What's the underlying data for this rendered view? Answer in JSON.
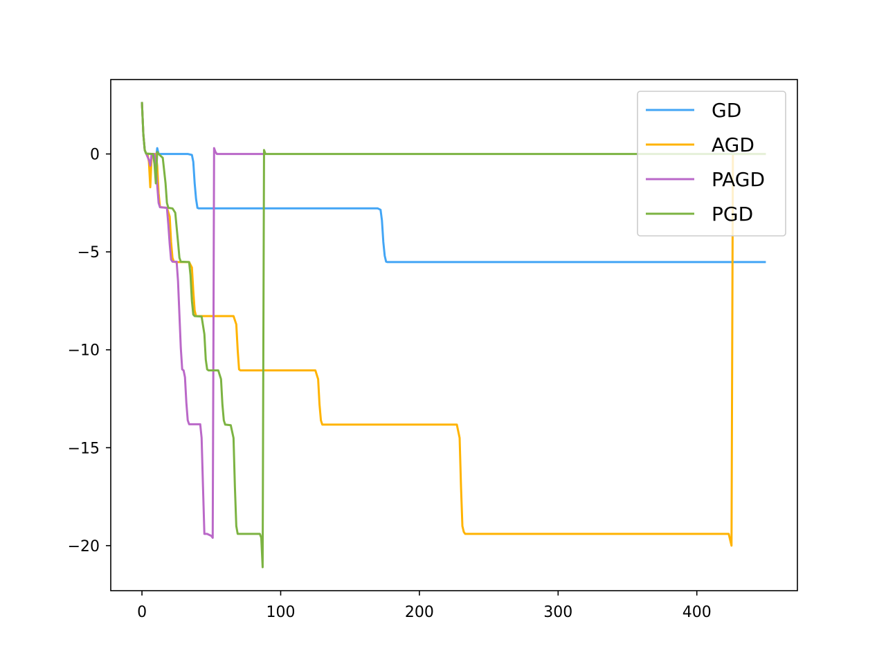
{
  "chart_data": {
    "type": "line",
    "title": "",
    "xlabel": "",
    "ylabel": "",
    "xlim": [
      -22.5,
      472.5
    ],
    "ylim": [
      -22.3,
      3.8
    ],
    "x_ticks": [
      0,
      100,
      200,
      300,
      400
    ],
    "y_ticks": [
      0,
      -5,
      -10,
      -15,
      -20
    ],
    "x_tick_labels": [
      "0",
      "100",
      "200",
      "300",
      "400"
    ],
    "y_tick_labels": [
      "0",
      "−5",
      "−10",
      "−15",
      "−20"
    ],
    "grid": false,
    "legend_placement": "top-right",
    "series": [
      {
        "name": "GD",
        "color": "#42a5f5",
        "points": [
          [
            0,
            2.6
          ],
          [
            1,
            1.0
          ],
          [
            2,
            0.2
          ],
          [
            3,
            0.02
          ],
          [
            5,
            0.0
          ],
          [
            8,
            0.0
          ],
          [
            10,
            -0.3
          ],
          [
            11,
            0.3
          ],
          [
            12,
            0.0
          ],
          [
            33,
            0.0
          ],
          [
            36,
            -0.05
          ],
          [
            37,
            -0.4
          ],
          [
            38,
            -1.5
          ],
          [
            39,
            -2.3
          ],
          [
            40,
            -2.75
          ],
          [
            41,
            -2.78
          ],
          [
            170,
            -2.78
          ],
          [
            172,
            -2.85
          ],
          [
            173,
            -3.4
          ],
          [
            174,
            -4.5
          ],
          [
            175,
            -5.2
          ],
          [
            176,
            -5.5
          ],
          [
            177,
            -5.52
          ],
          [
            449,
            -5.52
          ]
        ]
      },
      {
        "name": "AGD",
        "color": "#ffb300",
        "points": [
          [
            0,
            2.6
          ],
          [
            1,
            1.0
          ],
          [
            2,
            0.2
          ],
          [
            3,
            0.02
          ],
          [
            4,
            0.0
          ],
          [
            5,
            -0.4
          ],
          [
            6,
            -1.7
          ],
          [
            7,
            0.0
          ],
          [
            10,
            0.0
          ],
          [
            11,
            -0.6
          ],
          [
            12,
            -2.0
          ],
          [
            13,
            -2.7
          ],
          [
            14,
            -2.72
          ],
          [
            18,
            -2.75
          ],
          [
            20,
            -3.2
          ],
          [
            21,
            -4.5
          ],
          [
            22,
            -5.3
          ],
          [
            23,
            -5.5
          ],
          [
            24,
            -5.52
          ],
          [
            34,
            -5.52
          ],
          [
            36,
            -5.8
          ],
          [
            37,
            -7.0
          ],
          [
            38,
            -8.0
          ],
          [
            39,
            -8.28
          ],
          [
            66,
            -8.28
          ],
          [
            68,
            -8.7
          ],
          [
            69,
            -10.0
          ],
          [
            70,
            -11.0
          ],
          [
            71,
            -11.05
          ],
          [
            125,
            -11.05
          ],
          [
            127,
            -11.5
          ],
          [
            128,
            -12.8
          ],
          [
            129,
            -13.6
          ],
          [
            130,
            -13.82
          ],
          [
            227,
            -13.82
          ],
          [
            229,
            -14.5
          ],
          [
            230,
            -17.0
          ],
          [
            231,
            -19.0
          ],
          [
            232,
            -19.3
          ],
          [
            233,
            -19.4
          ],
          [
            423,
            -19.4
          ],
          [
            424,
            -19.7
          ],
          [
            425,
            -20.0
          ],
          [
            425.5,
            -10.0
          ],
          [
            426,
            0.0
          ],
          [
            449,
            0.0
          ]
        ]
      },
      {
        "name": "PAGD",
        "color": "#ba68c8",
        "points": [
          [
            0,
            2.6
          ],
          [
            1,
            1.0
          ],
          [
            2,
            0.2
          ],
          [
            3,
            0.02
          ],
          [
            5,
            -0.3
          ],
          [
            6,
            -0.6
          ],
          [
            7,
            0.0
          ],
          [
            9,
            0.0
          ],
          [
            10,
            -0.6
          ],
          [
            11,
            -1.6
          ],
          [
            12,
            -2.5
          ],
          [
            13,
            -2.72
          ],
          [
            18,
            -2.75
          ],
          [
            19,
            -3.6
          ],
          [
            20,
            -4.6
          ],
          [
            21,
            -5.4
          ],
          [
            22,
            -5.5
          ],
          [
            25,
            -5.5
          ],
          [
            26,
            -6.5
          ],
          [
            27,
            -8.2
          ],
          [
            28,
            -9.9
          ],
          [
            29,
            -11.0
          ],
          [
            30,
            -11.05
          ],
          [
            31,
            -11.4
          ],
          [
            32,
            -12.7
          ],
          [
            33,
            -13.6
          ],
          [
            34,
            -13.8
          ],
          [
            42,
            -13.8
          ],
          [
            43,
            -14.5
          ],
          [
            44,
            -17.0
          ],
          [
            45,
            -19.4
          ],
          [
            47,
            -19.4
          ],
          [
            50,
            -19.5
          ],
          [
            51,
            -19.6
          ],
          [
            51.5,
            -10.0
          ],
          [
            52,
            0.3
          ],
          [
            53,
            0.1
          ],
          [
            54,
            0.0
          ],
          [
            88,
            0.0
          ]
        ]
      },
      {
        "name": "PGD",
        "color": "#7cb342",
        "points": [
          [
            0,
            2.6
          ],
          [
            1,
            1.0
          ],
          [
            2,
            0.2
          ],
          [
            3,
            0.02
          ],
          [
            8,
            0.0
          ],
          [
            9,
            -0.5
          ],
          [
            10,
            -1.5
          ],
          [
            11,
            0.1
          ],
          [
            12,
            0.0
          ],
          [
            15,
            -0.2
          ],
          [
            17,
            -1.5
          ],
          [
            18,
            -2.5
          ],
          [
            19,
            -2.75
          ],
          [
            22,
            -2.78
          ],
          [
            24,
            -3.0
          ],
          [
            26,
            -4.5
          ],
          [
            27,
            -5.3
          ],
          [
            28,
            -5.5
          ],
          [
            34,
            -5.52
          ],
          [
            35,
            -6.2
          ],
          [
            36,
            -7.5
          ],
          [
            37,
            -8.2
          ],
          [
            38,
            -8.28
          ],
          [
            43,
            -8.3
          ],
          [
            45,
            -9.2
          ],
          [
            46,
            -10.5
          ],
          [
            47,
            -11.0
          ],
          [
            48,
            -11.05
          ],
          [
            55,
            -11.05
          ],
          [
            57,
            -11.5
          ],
          [
            58,
            -12.8
          ],
          [
            59,
            -13.6
          ],
          [
            60,
            -13.82
          ],
          [
            64,
            -13.85
          ],
          [
            66,
            -14.5
          ],
          [
            67,
            -17.0
          ],
          [
            68,
            -19.0
          ],
          [
            69,
            -19.4
          ],
          [
            85,
            -19.4
          ],
          [
            86,
            -19.6
          ],
          [
            87,
            -21.1
          ],
          [
            87.5,
            -10.0
          ],
          [
            88,
            0.2
          ],
          [
            89,
            0.0
          ],
          [
            449,
            0.0
          ]
        ]
      }
    ]
  }
}
